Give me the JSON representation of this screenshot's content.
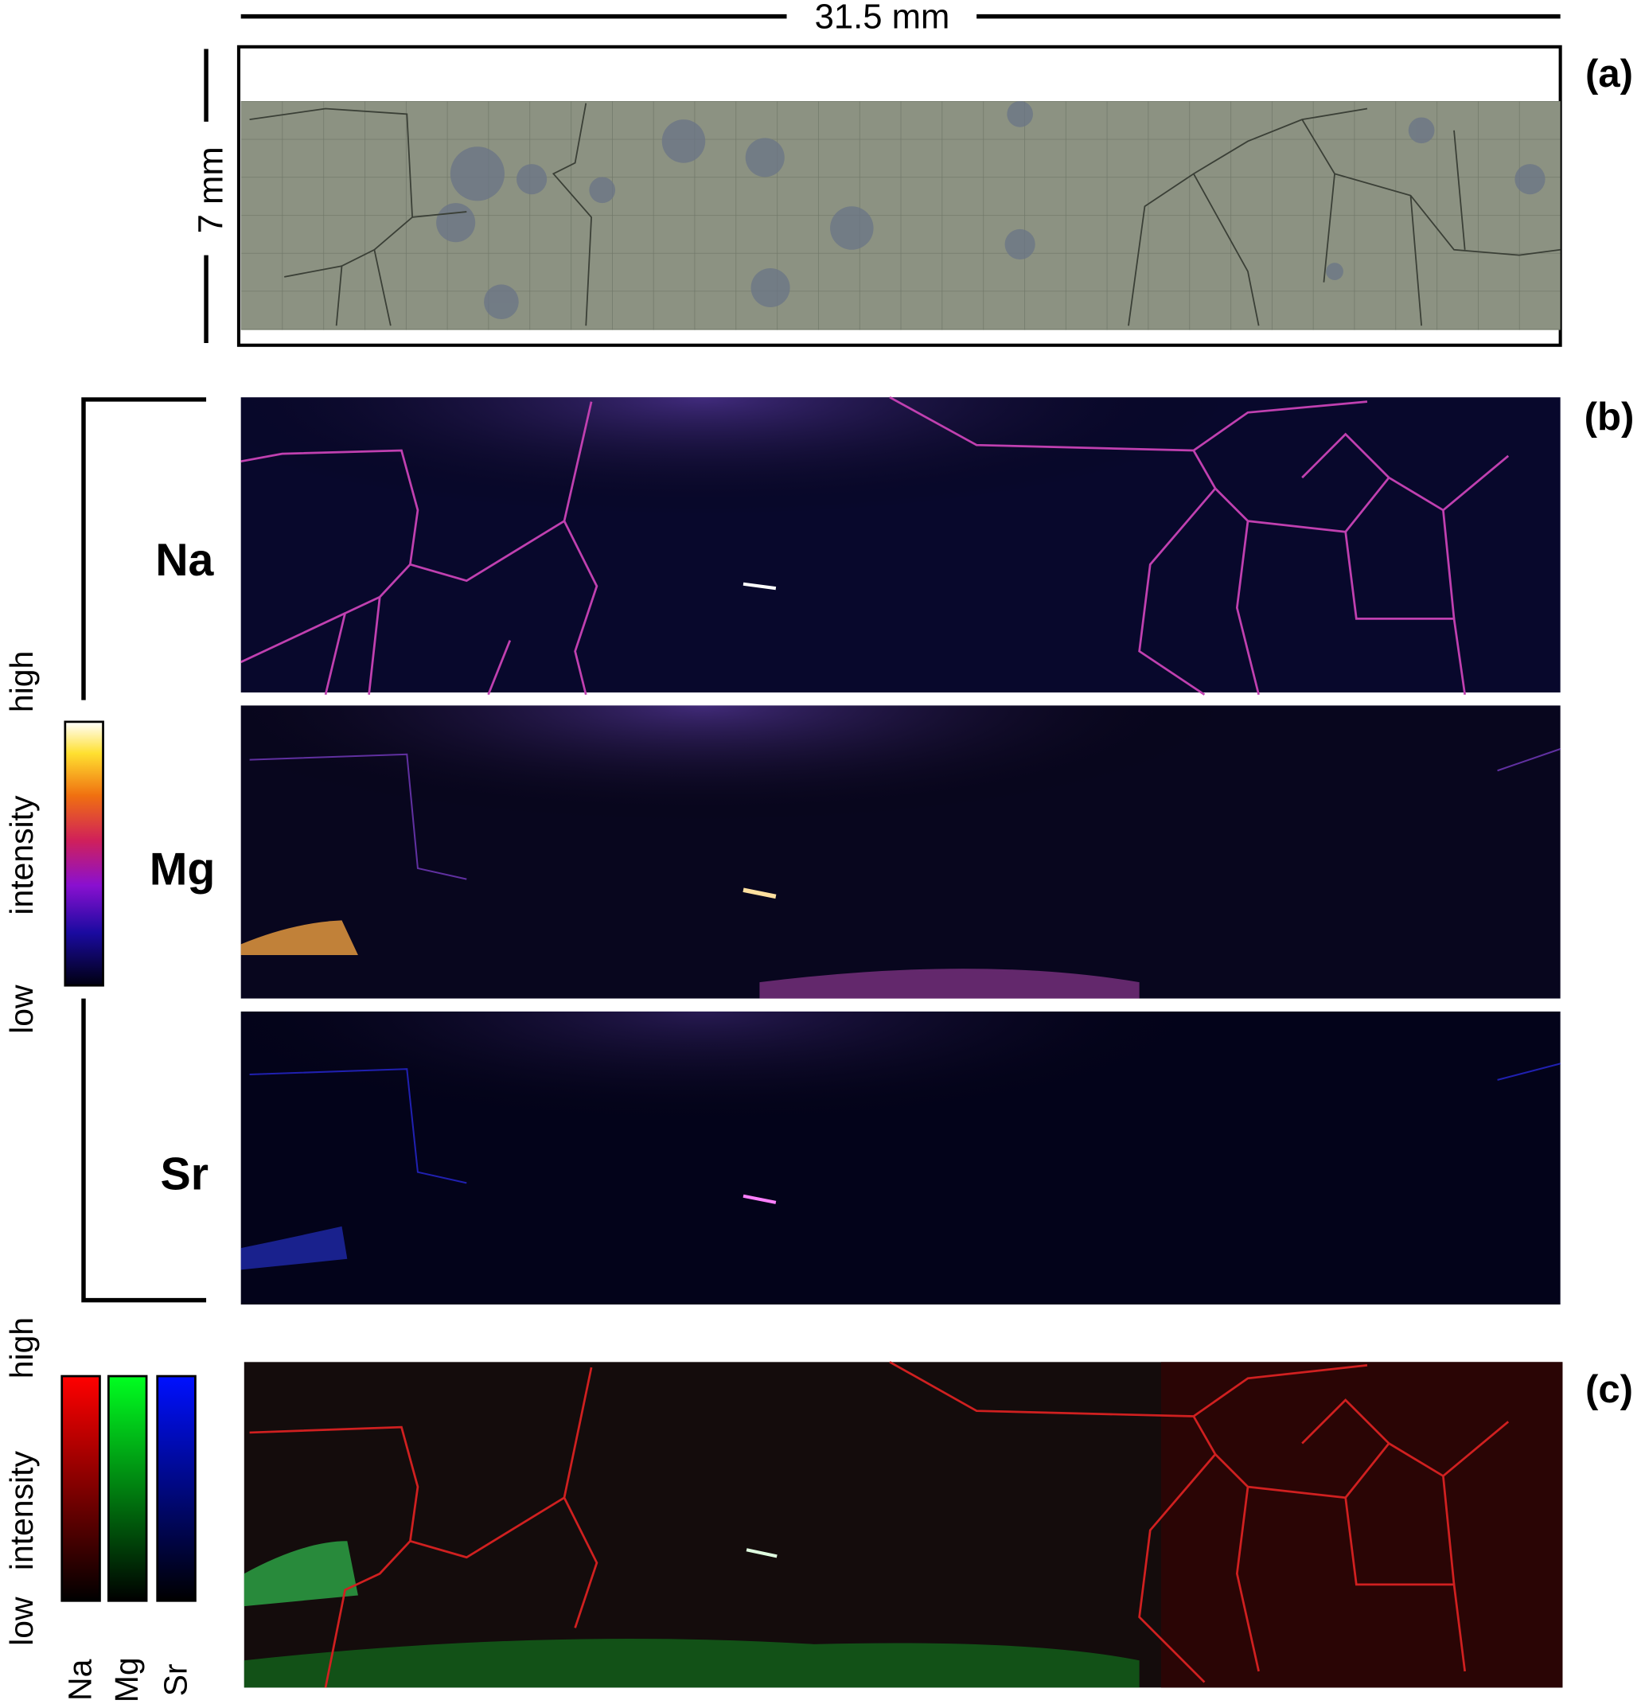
{
  "scale_bars": {
    "horizontal": "31.5 mm",
    "vertical": "7 mm"
  },
  "panels": [
    {
      "label": "(a)"
    },
    {
      "label": "(b)",
      "elements": [
        "Na",
        "Mg",
        "Sr"
      ],
      "colorbar": {
        "high": "high",
        "title": "intensity",
        "low": "low"
      }
    },
    {
      "label": "(c)",
      "colorbar": {
        "high": "high",
        "title": "intensity",
        "low": "low",
        "channels": [
          "Na",
          "Mg",
          "Sr"
        ]
      }
    }
  ]
}
